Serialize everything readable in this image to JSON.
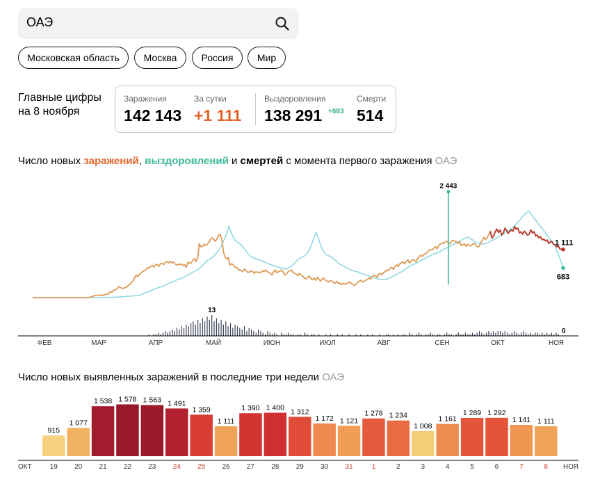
{
  "search": {
    "value": "ОАЭ"
  },
  "chips": [
    {
      "label": "Московская область"
    },
    {
      "label": "Москва"
    },
    {
      "label": "Россия"
    },
    {
      "label": "Мир"
    }
  ],
  "summary": {
    "label_line1": "Главные цифры",
    "label_line2": "на 8 ноября",
    "infections_label": "Заражения",
    "infections_value": "142 143",
    "daily_label": "За сутки",
    "daily_value": "+1 111",
    "recovered_label": "Выздоровления",
    "recovered_value": "138 291",
    "recovered_delta": "+683",
    "deaths_label": "Смерти",
    "deaths_value": "514"
  },
  "colors": {
    "infections": "#e4632a",
    "recoveries_spike": "#3fb99a",
    "recoveries_line": "#8fd9e0",
    "recent_infections": "#b8352a",
    "deaths_bars": "#3b4157"
  },
  "chart_data": [
    {
      "type": "line",
      "title_parts": {
        "prefix": "Число новых ",
        "infections": "заражений",
        "sep1": ", ",
        "recoveries": "выздоровлений",
        "sep2": " и ",
        "deaths": "смертей",
        "suffix": " с момента первого заражения",
        "location": "ОАЭ"
      },
      "x_ticks": [
        "ФЕВ",
        "МАР",
        "АПР",
        "МАЙ",
        "ИЮН",
        "ИЮЛ",
        "АВГ",
        "СЕН",
        "ОКТ",
        "НОЯ"
      ],
      "ylim": [
        0,
        2500
      ],
      "series": [
        {
          "key": "infections",
          "values": [
            0,
            0,
            0,
            0,
            0,
            0,
            0,
            0,
            0,
            0,
            0,
            0,
            0,
            0,
            0,
            0,
            0,
            0,
            0,
            0,
            0,
            0,
            0,
            0,
            0,
            0,
            0,
            0,
            0,
            0,
            0,
            0,
            0,
            0,
            0,
            5,
            20,
            30,
            40,
            50,
            55,
            60,
            50,
            60,
            60,
            75,
            80,
            90,
            140,
            120,
            170,
            180,
            200,
            250,
            240,
            220,
            210,
            230,
            240,
            280,
            300,
            350,
            380,
            460,
            520,
            480,
            540,
            570,
            600,
            620,
            640,
            690,
            680,
            720,
            740,
            700,
            760,
            770,
            720,
            780,
            790,
            760,
            820,
            830,
            800,
            840,
            800,
            820,
            780,
            750,
            770,
            760,
            780,
            740,
            760,
            700,
            820,
            790,
            800,
            860,
            900,
            830,
            910,
            1250,
            1170,
            1180,
            1230,
            1200,
            1240,
            1270,
            1350,
            1380,
            1340,
            1300,
            1360,
            1440,
            1460,
            1320,
            1050,
            930,
            890,
            920,
            750,
            780,
            760,
            700,
            700,
            650,
            640,
            620,
            600,
            660,
            620,
            580,
            590,
            620,
            600,
            560,
            600,
            580,
            590,
            570,
            620,
            600,
            640,
            600,
            580,
            560,
            520,
            600,
            640,
            570,
            600,
            610,
            640,
            580,
            520,
            550,
            600,
            620,
            640,
            580,
            560,
            540,
            510,
            560,
            520,
            490,
            450,
            430,
            470,
            500,
            440,
            410,
            450,
            400,
            470,
            420,
            380,
            430,
            450,
            400,
            380,
            360,
            400,
            380,
            350,
            330,
            380,
            320,
            340,
            300,
            330,
            310,
            320,
            340,
            360,
            330,
            300,
            280,
            310,
            350,
            380,
            400,
            360,
            380,
            400,
            420,
            450,
            430,
            480,
            520,
            500,
            470,
            540,
            560,
            530,
            580,
            600,
            640,
            620,
            680,
            700,
            650,
            720,
            760,
            720,
            780,
            800,
            820,
            780,
            840,
            870,
            800,
            840,
            880,
            860,
            820,
            900,
            940,
            980,
            950,
            1000,
            1010,
            1050,
            1080,
            1110,
            1100,
            1140,
            1180,
            1120,
            1200,
            1230,
            1260,
            1250,
            1280,
            1300,
            1270,
            1240,
            1290,
            1320,
            1300,
            1280,
            1250,
            1290,
            1200,
            1220,
            1240,
            1180,
            1230,
            1200,
            1190,
            1230,
            1250,
            1210,
            1170,
            1180,
            1260,
            1310,
            1390,
            1340,
            1380,
            1450,
            1530,
            1370,
            1420,
            1520,
            1580,
            1500,
            1560,
            1440,
            1490,
            1600,
            1550,
            1480,
            1530,
            1560,
            1530,
            1640,
            1580,
            1600,
            1490,
            1520,
            1460,
            1530,
            1490,
            1440,
            1460,
            1560,
            1490,
            1520,
            1420,
            1440,
            1380,
            1400,
            1330,
            1350,
            1310,
            1330,
            1250,
            1280,
            1300,
            1230,
            1210,
            1170,
            1190,
            1120,
            1110,
            1111
          ]
        },
        {
          "key": "recoveries",
          "values": [
            0,
            0,
            0,
            0,
            0,
            0,
            0,
            0,
            0,
            0,
            0,
            0,
            0,
            0,
            0,
            0,
            0,
            0,
            0,
            0,
            0,
            0,
            0,
            0,
            0,
            0,
            0,
            0,
            0,
            0,
            0,
            0,
            0,
            0,
            0,
            0,
            0,
            0,
            0,
            0,
            0,
            0,
            0,
            0,
            0,
            0,
            5,
            5,
            8,
            10,
            10,
            12,
            15,
            15,
            20,
            20,
            25,
            30,
            30,
            35,
            35,
            40,
            45,
            45,
            50,
            60,
            70,
            90,
            110,
            120,
            130,
            150,
            170,
            180,
            200,
            210,
            230,
            240,
            250,
            260,
            280,
            300,
            320,
            340,
            350,
            360,
            380,
            400,
            420,
            430,
            440,
            460,
            480,
            500,
            520,
            540,
            560,
            580,
            600,
            620,
            640,
            660,
            700,
            740,
            780,
            820,
            860,
            880,
            900,
            920,
            960,
            1000,
            1050,
            1100,
            1150,
            1230,
            1320,
            1400,
            1500,
            1650,
            1550,
            1450,
            1380,
            1320,
            1280,
            1260,
            1240,
            1200,
            1150,
            1100,
            1050,
            1000,
            960,
            940,
            920,
            900,
            880,
            880,
            860,
            840,
            820,
            820,
            800,
            780,
            760,
            760,
            740,
            720,
            720,
            700,
            700,
            680,
            680,
            660,
            660,
            680,
            700,
            720,
            760,
            800,
            840,
            880,
            900,
            920,
            940,
            960,
            1000,
            1050,
            1100,
            1200,
            1300,
            1400,
            1500,
            1420,
            1300,
            1180,
            1100,
            1050,
            1000,
            980,
            960,
            940,
            920,
            880,
            860,
            820,
            780,
            760,
            740,
            720,
            700,
            680,
            660,
            640,
            620,
            620,
            600,
            600,
            580,
            560,
            560,
            540,
            520,
            520,
            500,
            480,
            480,
            460,
            450,
            440,
            430,
            420,
            420,
            410,
            420,
            430,
            440,
            460,
            480,
            500,
            520,
            540,
            560,
            580,
            600,
            620,
            650,
            680,
            700,
            720,
            740,
            760,
            780,
            800,
            820,
            840,
            860,
            880,
            900,
            920,
            940,
            960,
            980,
            1000,
            1010,
            1020,
            1040,
            1060,
            1080,
            1100,
            1120,
            1140,
            1160,
            1180,
            1200,
            1220,
            1240,
            1260,
            1280,
            1300,
            1320,
            1340,
            1360,
            1380,
            1400,
            1380,
            1350,
            1330,
            1300,
            1280,
            1260,
            1250,
            1240,
            1230,
            1240,
            1250,
            1260,
            1280,
            1300,
            1320,
            1340,
            1360,
            1380,
            1400,
            1420,
            1450,
            1480,
            1500,
            1520,
            1550,
            1580,
            1600,
            1640,
            1680,
            1720,
            1760,
            1800,
            1850,
            1900,
            1920,
            1960,
            2000,
            1950,
            1900,
            1850,
            1800,
            1750,
            1700,
            1650,
            1600,
            1550,
            1500,
            1450,
            1400,
            1350,
            1300,
            1250,
            1200,
            1100,
            1000,
            900,
            800,
            683
          ]
        },
        {
          "key": "deaths",
          "values": [
            0,
            0,
            0,
            0,
            0,
            0,
            0,
            0,
            0,
            0,
            0,
            0,
            0,
            0,
            0,
            0,
            0,
            0,
            0,
            0,
            0,
            0,
            0,
            0,
            0,
            0,
            0,
            0,
            0,
            0,
            0,
            0,
            0,
            0,
            0,
            0,
            0,
            0,
            0,
            0,
            0,
            0,
            0,
            0,
            0,
            0,
            0,
            0,
            0,
            0,
            1,
            0,
            1,
            1,
            2,
            1,
            2,
            3,
            2,
            3,
            4,
            3,
            5,
            4,
            6,
            5,
            7,
            6,
            8,
            9,
            7,
            10,
            8,
            11,
            9,
            12,
            10,
            13,
            9,
            11,
            8,
            10,
            7,
            9,
            6,
            8,
            5,
            7,
            6,
            5,
            4,
            6,
            3,
            5,
            4,
            3,
            2,
            4,
            3,
            2,
            1,
            3,
            2,
            1,
            2,
            1,
            0,
            2,
            1,
            1,
            2,
            1,
            1,
            0,
            1,
            1,
            0,
            2,
            1,
            0,
            1,
            1,
            0,
            1,
            0,
            0,
            1,
            0,
            1,
            0,
            0,
            1,
            0,
            1,
            0,
            0,
            1,
            0,
            0,
            1,
            0,
            1,
            0,
            0,
            1,
            0,
            1,
            0,
            0,
            1,
            0,
            0,
            1,
            1,
            0,
            1,
            0,
            1,
            0,
            1,
            1,
            0,
            2,
            1,
            0,
            1,
            2,
            1,
            0,
            1,
            1,
            2,
            1,
            0,
            1,
            1,
            0,
            1,
            2,
            1,
            1,
            0,
            1,
            2,
            1,
            1,
            2,
            1,
            1,
            2,
            1,
            2,
            3,
            2,
            1,
            2,
            3,
            2,
            3,
            2,
            3,
            3,
            2,
            3,
            2,
            1,
            2,
            3,
            2,
            1,
            2,
            3,
            2,
            1,
            2,
            1,
            2,
            2,
            1,
            2,
            1,
            2,
            1,
            2,
            1,
            2,
            1,
            0,
            0
          ]
        }
      ],
      "annotations": [
        {
          "label": "2 443",
          "value": 2443
        },
        {
          "label": "1 111",
          "value": 1111
        },
        {
          "label": "683",
          "value": 683
        },
        {
          "label": "13",
          "value": 13
        },
        {
          "label": "0",
          "value": 0
        }
      ]
    },
    {
      "type": "bar",
      "title": "Число новых выявленных заражений в последние три недели",
      "location": "ОАЭ",
      "categories": [
        "19",
        "20",
        "21",
        "22",
        "23",
        "24",
        "25",
        "26",
        "27",
        "28",
        "29",
        "30",
        "31",
        "1",
        "2",
        "3",
        "4",
        "5",
        "6",
        "7",
        "8"
      ],
      "weekend_categories": [
        "24",
        "25",
        "31",
        "1",
        "7",
        "8"
      ],
      "values": [
        915,
        1077,
        1538,
        1578,
        1563,
        1491,
        1359,
        1111,
        1390,
        1400,
        1312,
        1172,
        1121,
        1278,
        1234,
        1008,
        1161,
        1289,
        1292,
        1141,
        1111
      ],
      "value_labels": [
        "915",
        "1 077",
        "1 538",
        "1 578",
        "1 563",
        "1 491",
        "1 359",
        "1 111",
        "1 390",
        "1 400",
        "1 312",
        "1 172",
        "1 121",
        "1 278",
        "1 234",
        "1 008",
        "1 161",
        "1 289",
        "1 292",
        "1 141",
        "1 111"
      ],
      "axis_left": "ОКТ",
      "axis_right": "НОЯ",
      "ylim": [
        0,
        1600
      ]
    }
  ]
}
